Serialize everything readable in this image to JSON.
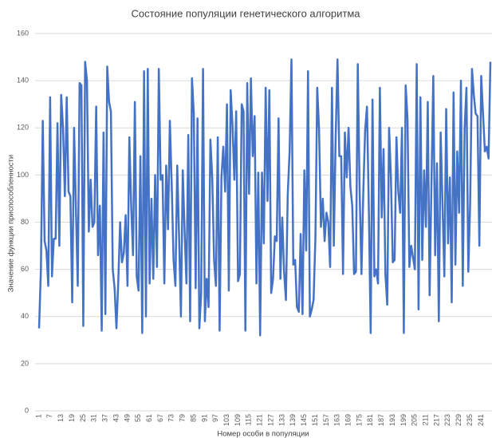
{
  "chart_data": {
    "type": "line",
    "title": "Состояние популяции генетического алгоритма",
    "x_label": "Номер особи в популяции",
    "y_label": "Значение функции приспособленности",
    "categories": [
      1,
      null,
      null,
      null,
      null,
      null,
      7,
      null,
      null,
      null,
      null,
      null,
      13,
      null,
      null,
      null,
      null,
      null,
      19,
      null,
      null,
      null,
      null,
      null,
      25,
      null,
      null,
      null,
      null,
      null,
      31,
      null,
      null,
      null,
      null,
      null,
      37,
      null,
      null,
      null,
      null,
      null,
      43,
      null,
      null,
      null,
      null,
      null,
      49,
      null,
      null,
      null,
      null,
      null,
      55,
      null,
      null,
      null,
      null,
      null,
      61,
      null,
      null,
      null,
      null,
      null,
      67,
      null,
      null,
      null,
      null,
      null,
      73,
      null,
      null,
      null,
      null,
      null,
      79,
      null,
      null,
      null,
      null,
      null,
      85,
      null,
      null,
      null,
      null,
      null,
      91,
      null,
      null,
      null,
      null,
      null,
      97,
      null,
      null,
      null,
      null,
      null,
      103,
      null,
      null,
      null,
      null,
      null,
      109,
      null,
      null,
      null,
      null,
      null,
      115,
      null,
      null,
      null,
      null,
      null,
      121,
      null,
      null,
      null,
      null,
      null,
      127,
      null,
      null,
      null,
      null,
      null,
      133,
      null,
      null,
      null,
      null,
      null,
      139,
      null,
      null,
      null,
      null,
      null,
      145,
      null,
      null,
      null,
      null,
      null,
      151,
      null,
      null,
      null,
      null,
      null,
      157,
      null,
      null,
      null,
      null,
      null,
      163,
      null,
      null,
      null,
      null,
      null,
      169,
      null,
      null,
      null,
      null,
      null,
      175,
      null,
      null,
      null,
      null,
      null,
      181,
      null,
      null,
      null,
      null,
      null,
      187,
      null,
      null,
      null,
      null,
      null,
      193,
      null,
      null,
      null,
      null,
      null,
      199,
      null,
      null,
      null,
      null,
      null,
      205,
      null,
      null,
      null,
      null,
      null,
      211,
      null,
      null,
      null,
      null,
      null,
      217,
      null,
      null,
      null,
      null,
      null,
      223,
      null,
      null,
      null,
      null,
      null,
      229,
      null,
      null,
      null,
      null,
      null,
      235,
      null,
      null,
      null,
      null,
      null,
      241,
      null,
      null,
      null,
      null,
      null
    ],
    "series": [
      {
        "color": "#4472c4",
        "values": [
          35,
          60,
          123,
          72,
          68,
          53,
          133,
          57,
          73,
          73,
          122,
          70,
          134,
          120,
          91,
          133,
          93,
          91,
          46,
          120,
          86,
          53,
          139,
          138,
          36,
          148,
          140,
          76,
          98,
          78,
          80,
          129,
          66,
          87,
          34,
          118,
          41,
          146,
          131,
          127,
          60,
          52,
          35,
          55,
          80,
          63,
          67,
          83,
          53,
          116,
          87,
          66,
          131,
          57,
          51,
          108,
          33,
          144,
          40,
          145,
          54,
          90,
          56,
          100,
          61,
          145,
          98,
          100,
          54,
          104,
          77,
          123,
          96,
          64,
          53,
          104,
          74,
          40,
          102,
          76,
          54,
          117,
          38,
          141,
          126,
          52,
          124,
          35,
          50,
          145,
          38,
          56,
          44,
          115,
          99,
          64,
          53,
          116,
          34,
          99,
          112,
          93,
          130,
          51,
          136,
          121,
          98,
          127,
          55,
          58,
          130,
          127,
          34,
          139,
          92,
          141,
          108,
          125,
          54,
          101,
          32,
          101,
          71,
          137,
          89,
          136,
          50,
          56,
          74,
          72,
          124,
          56,
          82,
          59,
          47,
          92,
          110,
          149,
          62,
          64,
          44,
          42,
          75,
          41,
          102,
          68,
          144,
          40,
          43,
          47,
          73,
          137,
          119,
          78,
          90,
          72,
          84,
          80,
          61,
          137,
          70,
          116,
          149,
          108,
          108,
          58,
          118,
          99,
          120,
          95,
          87,
          58,
          59,
          147,
          94,
          58,
          93,
          119,
          129,
          86,
          33,
          132,
          57,
          60,
          54,
          137,
          82,
          111,
          58,
          45,
          120,
          99,
          63,
          64,
          116,
          93,
          84,
          120,
          33,
          138,
          124,
          61,
          70,
          65,
          60,
          147,
          43,
          133,
          64,
          102,
          78,
          131,
          49,
          96,
          142,
          66,
          105,
          38,
          118,
          88,
          57,
          128,
          71,
          99,
          46,
          135,
          62,
          110,
          84,
          140,
          53,
          120,
          137,
          59,
          88,
          145,
          134,
          126,
          125,
          70,
          142,
          126,
          110,
          112,
          107,
          148
        ]
      }
    ],
    "ylim": [
      0,
      160
    ],
    "yticks": [
      0,
      20,
      40,
      60,
      80,
      100,
      120,
      140,
      160
    ],
    "grid": true
  }
}
